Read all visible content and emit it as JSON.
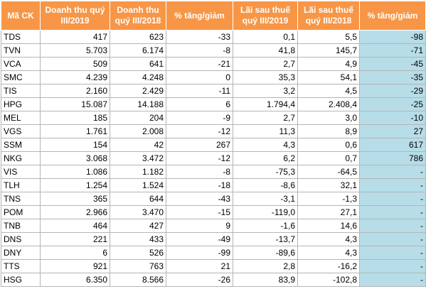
{
  "headers": [
    "Mã CK",
    "Doanh thu quý III/2019",
    "Doanh thu quý III/2018",
    "% tăng/giảm",
    "Lãi sau thuế quý III/2019",
    "Lãi sau thuế quý III/2018",
    "% tăng/giảm"
  ],
  "rows": [
    [
      "TDS",
      "417",
      "623",
      "-33",
      "0,1",
      "5,5",
      "-98"
    ],
    [
      "TVN",
      "5.703",
      "6.174",
      "-8",
      "41,8",
      "145,7",
      "-71"
    ],
    [
      "VCA",
      "509",
      "641",
      "-21",
      "2,7",
      "4,9",
      "-45"
    ],
    [
      "SMC",
      "4.239",
      "4.248",
      "0",
      "35,3",
      "54,1",
      "-35"
    ],
    [
      "TIS",
      "2.160",
      "2.429",
      "-11",
      "3,2",
      "4,5",
      "-29"
    ],
    [
      "HPG",
      "15.087",
      "14.188",
      "6",
      "1.794,4",
      "2.408,4",
      "-25"
    ],
    [
      "MEL",
      "185",
      "204",
      "-9",
      "2,7",
      "3,0",
      "-10"
    ],
    [
      "VGS",
      "1.761",
      "2.008",
      "-12",
      "11,3",
      "8,9",
      "27"
    ],
    [
      "SSM",
      "154",
      "42",
      "267",
      "4,3",
      "0,6",
      "617"
    ],
    [
      "NKG",
      "3.068",
      "3.472",
      "-12",
      "6,2",
      "0,7",
      "786"
    ],
    [
      "VIS",
      "1.086",
      "1.182",
      "-8",
      "-75,3",
      "-64,5",
      "-"
    ],
    [
      "TLH",
      "1.254",
      "1.524",
      "-18",
      "-8,6",
      "32,1",
      "-"
    ],
    [
      "TNS",
      "365",
      "644",
      "-43",
      "-3,1",
      "-1,3",
      "-"
    ],
    [
      "POM",
      "2.966",
      "3.470",
      "-15",
      "-119,0",
      "27,1",
      "-"
    ],
    [
      "TNB",
      "464",
      "427",
      "9",
      "-1,6",
      "14,6",
      "-"
    ],
    [
      "DNS",
      "221",
      "433",
      "-49",
      "-13,7",
      "4,3",
      "-"
    ],
    [
      "DNY",
      "6",
      "526",
      "-99",
      "-89,6",
      "4,3",
      "-"
    ],
    [
      "TTS",
      "921",
      "763",
      "21",
      "2,8",
      "-16,2",
      "-"
    ],
    [
      "HSG",
      "6.350",
      "8.566",
      "-26",
      "83,9",
      "-102,8",
      "-"
    ]
  ],
  "colors": {
    "header_bg": "#f79646",
    "header_text": "#ffffff",
    "highlight_column_bg": "#b7dde8",
    "grid_border": "#b5b5b5"
  }
}
